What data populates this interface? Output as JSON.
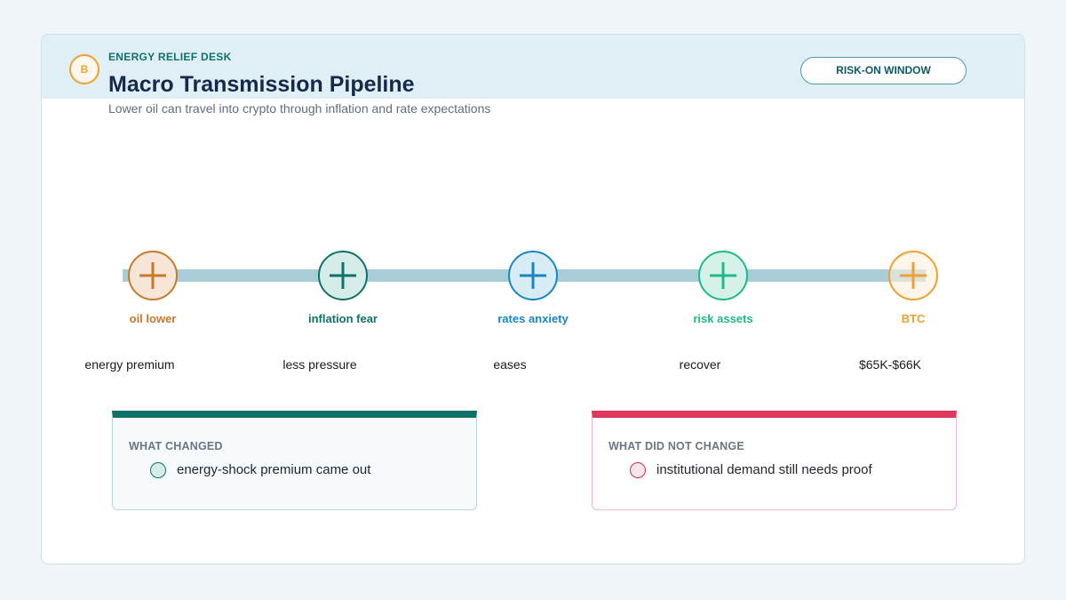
{
  "header": {
    "badge": "B",
    "eyebrow": "ENERGY RELIEF DESK",
    "title": "Macro Transmission Pipeline",
    "subtitle": "Lower oil can travel into crypto through inflation and rate expectations",
    "status": "RISK-ON WINDOW"
  },
  "nodes": [
    {
      "label": "oil lower",
      "caption": "energy premium"
    },
    {
      "label": "inflation fear",
      "caption": "less pressure"
    },
    {
      "label": "rates anxiety",
      "caption": "eases"
    },
    {
      "label": "risk assets",
      "caption": "recover"
    },
    {
      "label": "BTC",
      "caption": "$65K-$66K"
    }
  ],
  "cards": [
    {
      "title": "WHAT CHANGED",
      "item": "energy-shock premium came out"
    },
    {
      "title": "WHAT DID NOT CHANGE",
      "item": "institutional demand still needs proof"
    }
  ]
}
